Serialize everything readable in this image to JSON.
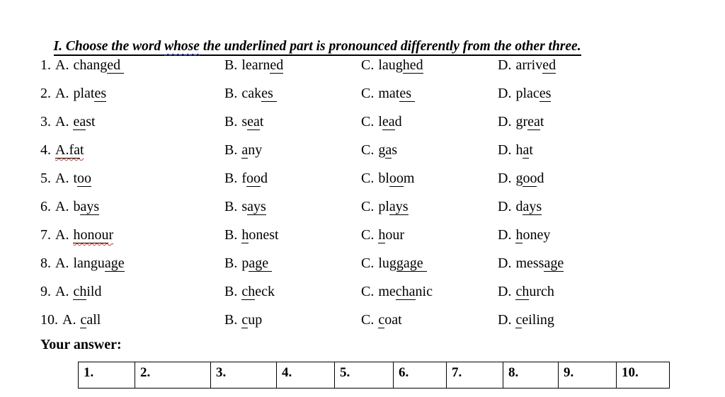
{
  "title": {
    "prefix": "I. Choose the word ",
    "squiggle_word": "whose",
    "suffix": " the underlined part is pronounced differently from the other three.",
    "squiggle_color": "#3344cc"
  },
  "questions": [
    {
      "number": "1.",
      "options": [
        {
          "label": "A.",
          "parts": [
            {
              "t": "chang",
              "u": false
            },
            {
              "t": "ed ",
              "u": true
            }
          ]
        },
        {
          "label": "B.",
          "parts": [
            {
              "t": "learn",
              "u": false
            },
            {
              "t": "ed",
              "u": true
            }
          ]
        },
        {
          "label": "C.",
          "parts": [
            {
              "t": "laug",
              "u": false
            },
            {
              "t": "hed",
              "u": true
            }
          ]
        },
        {
          "label": "D.",
          "parts": [
            {
              "t": "arriv",
              "u": false
            },
            {
              "t": "ed",
              "u": true
            }
          ]
        }
      ]
    },
    {
      "number": "2.",
      "options": [
        {
          "label": "A.",
          "parts": [
            {
              "t": "plat",
              "u": false
            },
            {
              "t": "es",
              "u": true
            }
          ]
        },
        {
          "label": "B.",
          "parts": [
            {
              "t": "cak",
              "u": false
            },
            {
              "t": "es ",
              "u": true
            }
          ]
        },
        {
          "label": "C.",
          "parts": [
            {
              "t": "mat",
              "u": false
            },
            {
              "t": "es ",
              "u": true
            }
          ]
        },
        {
          "label": "D.",
          "parts": [
            {
              "t": "plac",
              "u": false
            },
            {
              "t": "es",
              "u": true
            }
          ]
        }
      ]
    },
    {
      "number": "3.",
      "options": [
        {
          "label": "A.",
          "parts": [
            {
              "t": "ea",
              "u": true
            },
            {
              "t": "st",
              "u": false
            }
          ]
        },
        {
          "label": "B.",
          "parts": [
            {
              "t": "s",
              "u": false
            },
            {
              "t": "ea",
              "u": true
            },
            {
              "t": "t",
              "u": false
            }
          ]
        },
        {
          "label": "C.",
          "parts": [
            {
              "t": "l",
              "u": false
            },
            {
              "t": "ea",
              "u": true
            },
            {
              "t": "d",
              "u": false
            }
          ]
        },
        {
          "label": "D.",
          "parts": [
            {
              "t": "gr",
              "u": false
            },
            {
              "t": "ea",
              "u": true
            },
            {
              "t": "t",
              "u": false
            }
          ]
        }
      ]
    },
    {
      "number": "4.",
      "options": [
        {
          "label": "",
          "wavy": true,
          "parts": [
            {
              "t": "A.fa",
              "u": true
            },
            {
              "t": "t",
              "u": false
            }
          ]
        },
        {
          "label": "B.",
          "parts": [
            {
              "t": "a",
              "u": true
            },
            {
              "t": "ny",
              "u": false
            }
          ]
        },
        {
          "label": "C.",
          "parts": [
            {
              "t": "g",
              "u": false
            },
            {
              "t": "a",
              "u": true
            },
            {
              "t": "s",
              "u": false
            }
          ]
        },
        {
          "label": "D.",
          "parts": [
            {
              "t": "h",
              "u": false
            },
            {
              "t": "a",
              "u": true
            },
            {
              "t": "t",
              "u": false
            }
          ]
        }
      ]
    },
    {
      "number": "5.",
      "options": [
        {
          "label": "A.",
          "parts": [
            {
              "t": "t",
              "u": false
            },
            {
              "t": "oo",
              "u": true
            }
          ]
        },
        {
          "label": "B.",
          "parts": [
            {
              "t": "f",
              "u": false
            },
            {
              "t": "oo",
              "u": true
            },
            {
              "t": "d",
              "u": false
            }
          ]
        },
        {
          "label": "C.",
          "parts": [
            {
              "t": "bl",
              "u": false
            },
            {
              "t": "oo",
              "u": true
            },
            {
              "t": "m",
              "u": false
            }
          ]
        },
        {
          "label": "D.",
          "parts": [
            {
              "t": "g",
              "u": false
            },
            {
              "t": "oo",
              "u": true
            },
            {
              "t": "d",
              "u": false
            }
          ]
        }
      ]
    },
    {
      "number": "6.",
      "options": [
        {
          "label": "A.",
          "parts": [
            {
              "t": "b",
              "u": false
            },
            {
              "t": "ays",
              "u": true
            }
          ]
        },
        {
          "label": "B.",
          "parts": [
            {
              "t": "s",
              "u": false
            },
            {
              "t": "ays",
              "u": true
            }
          ]
        },
        {
          "label": "C.",
          "parts": [
            {
              "t": "pl",
              "u": false
            },
            {
              "t": "ays",
              "u": true
            }
          ]
        },
        {
          "label": "D.",
          "parts": [
            {
              "t": "d",
              "u": false
            },
            {
              "t": "ays",
              "u": true
            }
          ]
        }
      ]
    },
    {
      "number": "7.",
      "options": [
        {
          "label": "A.",
          "wavy": true,
          "parts": [
            {
              "t": "honou",
              "u": true
            },
            {
              "t": "r",
              "u": false
            }
          ]
        },
        {
          "label": "B.",
          "parts": [
            {
              "t": "h",
              "u": true
            },
            {
              "t": "onest",
              "u": false
            }
          ]
        },
        {
          "label": "C.",
          "parts": [
            {
              "t": "h",
              "u": true
            },
            {
              "t": "our",
              "u": false
            }
          ]
        },
        {
          "label": "D.",
          "parts": [
            {
              "t": "h",
              "u": true
            },
            {
              "t": "oney",
              "u": false
            }
          ]
        }
      ]
    },
    {
      "number": "8.",
      "options": [
        {
          "label": "A.",
          "parts": [
            {
              "t": "langu",
              "u": false
            },
            {
              "t": "age",
              "u": true
            }
          ]
        },
        {
          "label": "B.",
          "parts": [
            {
              "t": "p",
              "u": false
            },
            {
              "t": "age ",
              "u": true
            }
          ]
        },
        {
          "label": "C.",
          "parts": [
            {
              "t": "lug",
              "u": false
            },
            {
              "t": "gage ",
              "u": true
            }
          ]
        },
        {
          "label": "D.",
          "parts": [
            {
              "t": "mess",
              "u": false
            },
            {
              "t": "age",
              "u": true
            }
          ]
        }
      ]
    },
    {
      "number": "9.",
      "options": [
        {
          "label": "A.",
          "parts": [
            {
              "t": "ch",
              "u": true
            },
            {
              "t": "ild",
              "u": false
            }
          ]
        },
        {
          "label": "B.",
          "parts": [
            {
              "t": "ch",
              "u": true
            },
            {
              "t": "eck",
              "u": false
            }
          ]
        },
        {
          "label": "C.",
          "parts": [
            {
              "t": "me",
              "u": false
            },
            {
              "t": "cha",
              "u": true
            },
            {
              "t": "nic",
              "u": false
            }
          ]
        },
        {
          "label": "D.",
          "parts": [
            {
              "t": "ch",
              "u": true
            },
            {
              "t": "urch",
              "u": false
            }
          ]
        }
      ]
    },
    {
      "number": "10.",
      "options": [
        {
          "label": "A.",
          "parts": [
            {
              "t": "c",
              "u": true
            },
            {
              "t": "all",
              "u": false
            }
          ]
        },
        {
          "label": "B.",
          "parts": [
            {
              "t": "c",
              "u": true
            },
            {
              "t": "up",
              "u": false
            }
          ]
        },
        {
          "label": "C.",
          "parts": [
            {
              "t": "c",
              "u": true
            },
            {
              "t": "oat",
              "u": false
            }
          ]
        },
        {
          "label": "D.",
          "parts": [
            {
              "t": "c",
              "u": true
            },
            {
              "t": "eiling",
              "u": false
            }
          ]
        }
      ]
    },
    {
      "number": "",
      "options": []
    }
  ],
  "answer": {
    "label": "Your answer:",
    "cells": [
      "1.",
      "2.",
      "3.",
      "4.",
      "5.",
      "6.",
      "7.",
      "8.",
      "9.",
      "10."
    ]
  }
}
